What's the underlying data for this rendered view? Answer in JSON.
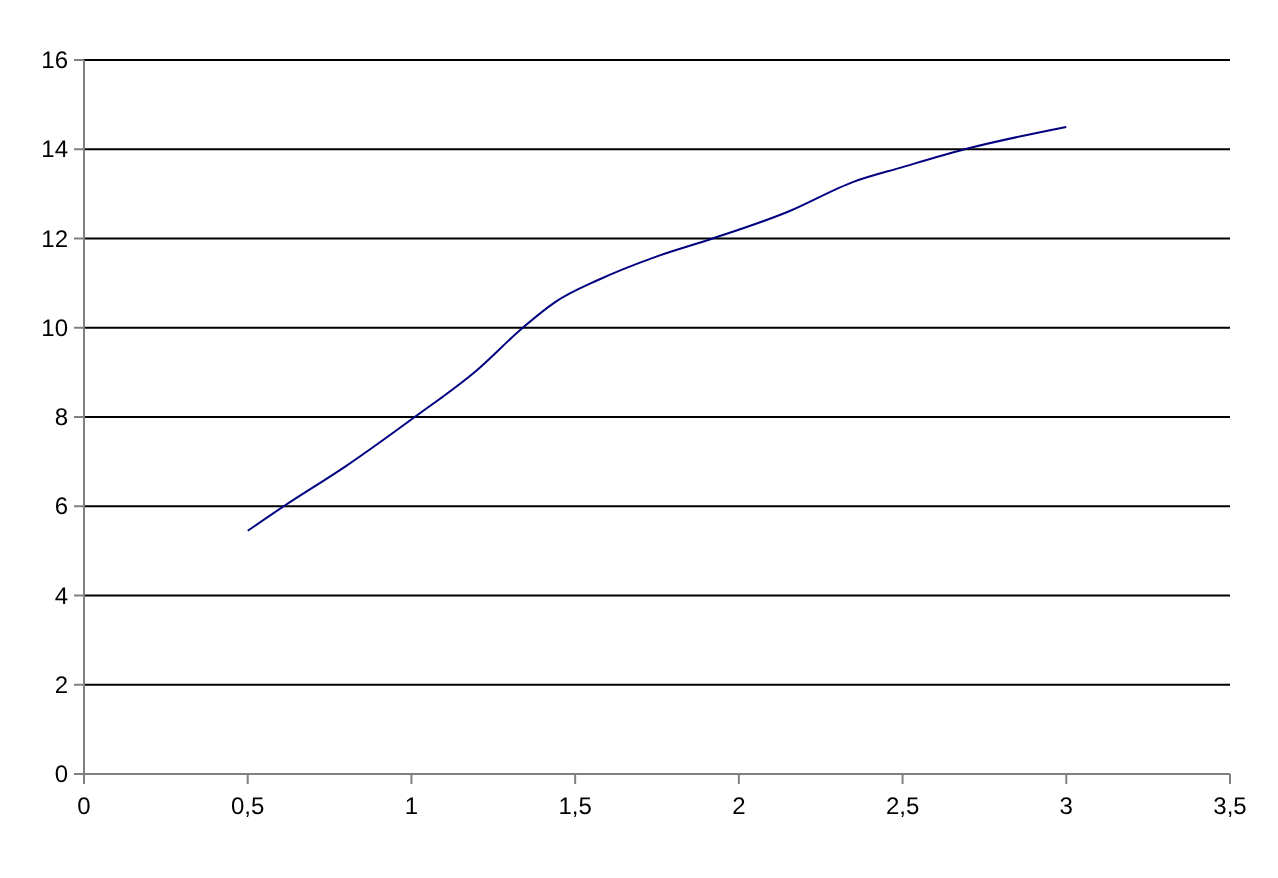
{
  "chart_data": {
    "type": "line",
    "x": [
      0.5,
      0.61,
      0.8,
      1.01,
      1.2,
      1.34,
      1.44,
      1.57,
      1.75,
      1.92,
      2.15,
      2.35,
      2.5,
      2.69,
      3
    ],
    "series": [
      {
        "color": "#000080",
        "values": [
          5.45,
          6,
          6.9,
          8,
          9.05,
          10,
          10.58,
          11.07,
          11.6,
          12,
          12.6,
          13.27,
          13.6,
          14,
          14.5
        ]
      }
    ],
    "xlim": [
      0,
      3.5
    ],
    "ylim": [
      0,
      16
    ],
    "xticks": [
      0,
      {
        "value": 0.5,
        "label": "0,5"
      },
      1,
      {
        "value": 1.5,
        "label": "1,5"
      },
      2,
      {
        "value": 2.5,
        "label": "2,5"
      },
      3,
      {
        "value": 3.5,
        "label": "3,5"
      }
    ],
    "yticks": [
      0,
      2,
      4,
      6,
      8,
      10,
      12,
      14,
      16
    ],
    "grid": "y",
    "marker": "none",
    "line_style": "solid"
  }
}
